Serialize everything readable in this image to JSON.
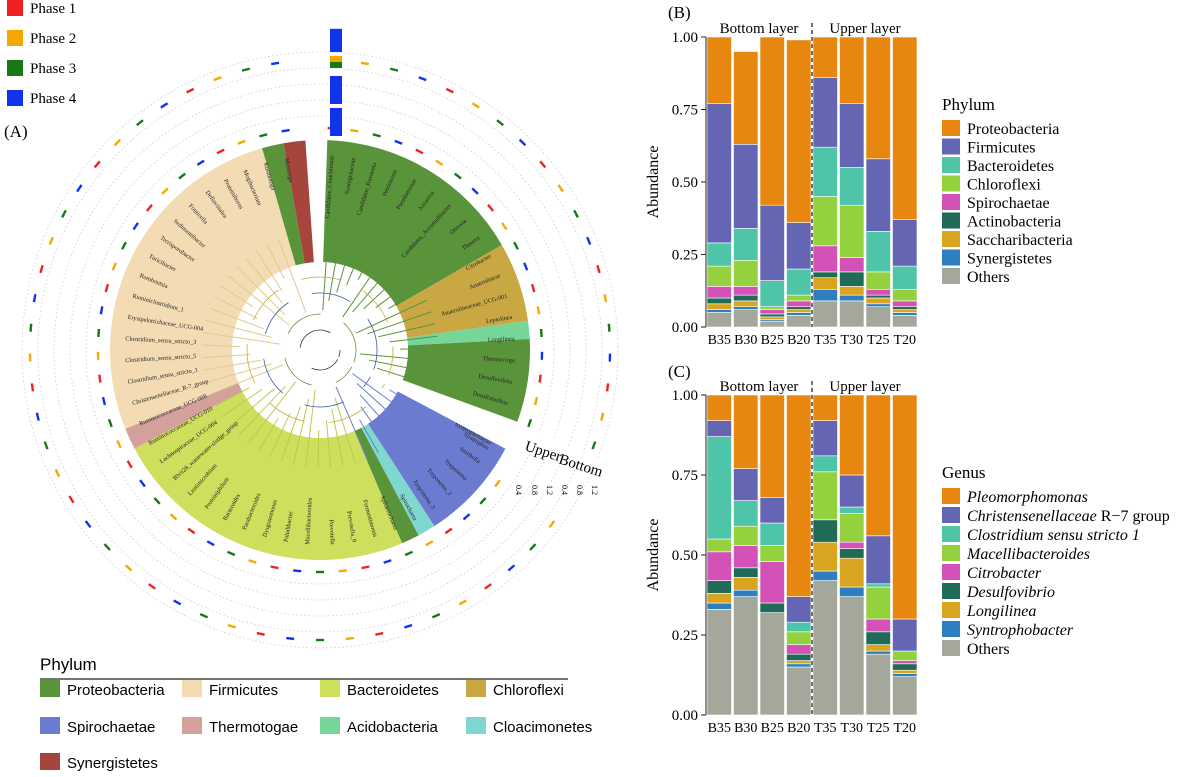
{
  "phase_legend": {
    "items": [
      {
        "label": "Phase 1",
        "color": "#ee2222"
      },
      {
        "label": "Phase 2",
        "color": "#f5a800"
      },
      {
        "label": "Phase 3",
        "color": "#157a15"
      },
      {
        "label": "Phase 4",
        "color": "#1133ee"
      }
    ]
  },
  "panel_a": {
    "label": "(A)",
    "ring_labels": {
      "upper": "Upper",
      "bottom": "Bottom"
    },
    "ring_ticks": [
      "0.4",
      "0.8",
      "1.2",
      "0.4",
      "0.8",
      "1.2"
    ],
    "clade_labels": [
      "Candidatus_Cloacimonas",
      "Synergistaceae",
      "Candidatus_Kuenenia",
      "Petrimonas",
      "Pseudomonas",
      "Azoarcus",
      "Candidatus_Accumulibacter",
      "Ottowia",
      "Thauera",
      "Citrobacter",
      "Anaerolineae",
      "Anaerolineaceae_UCG-001",
      "Leptolinea",
      "Longilinea",
      "Thermovirga",
      "Desulfovibrio",
      "Desulfobulbus",
      "Syntrophus",
      "Syntrophobacter",
      "Smithella",
      "Treponema",
      "Treponema_2",
      "Treponema_3",
      "Spirochaeta",
      "Sphaerochaeta",
      "Fermentimonas",
      "Prevotella_9",
      "Prevotella",
      "Macellibacteroides",
      "Paludibacter",
      "Dysgonomonas",
      "Parabacteroides",
      "Bacteroides",
      "Proteiniphilum",
      "Lentimicrobium",
      "Blvii28_wastewater-sludge_group",
      "Lachnospiraceae_UCG-004",
      "Ruminococcaceae_UCG-010",
      "Ruminococcaceae_UCG-008",
      "Christensenellaceae_R-7_group",
      "Clostridium_sensu_stricto_1",
      "Clostridium_sensu_stricto_5",
      "Clostridium_sensu_stricto_3",
      "Erysipelotrichaceae_UCG-004",
      "Ruminiclostridium_1",
      "Romboutsia",
      "Turicibacter",
      "Terrisporobacter",
      "Sedimentibacter",
      "Fonticella",
      "Defluviitalea",
      "Proteiniborus",
      "Mogibacterium",
      "Kosmotoga",
      "Mesotoga"
    ],
    "legend_title": "Phylum",
    "legend": [
      {
        "name": "Proteobacteria",
        "color": "#5a943a"
      },
      {
        "name": "Firmicutes",
        "color": "#f3dcb4"
      },
      {
        "name": "Bacteroidetes",
        "color": "#cddf5c"
      },
      {
        "name": "Chloroflexi",
        "color": "#c9a843"
      },
      {
        "name": "Spirochaetae",
        "color": "#6b7cd0"
      },
      {
        "name": "Thermotogae",
        "color": "#d4a09c"
      },
      {
        "name": "Acidobacteria",
        "color": "#76d69a"
      },
      {
        "name": "Cloacimonetes",
        "color": "#7fd8d0"
      },
      {
        "name": "Synergistetes",
        "color": "#a5453c"
      }
    ]
  },
  "chart_data": [
    {
      "panel": "(B)",
      "type": "bar",
      "stacked": true,
      "ylabel": "Abundance",
      "ylim": [
        0,
        1
      ],
      "yticks": [
        "0.00",
        "0.25",
        "0.50",
        "0.75",
        "1.00"
      ],
      "categories": [
        "B35",
        "B30",
        "B25",
        "B20",
        "T35",
        "T30",
        "T25",
        "T20"
      ],
      "group_labels": [
        "Bottom layer",
        "Upper layer"
      ],
      "legend_title": "Phylum",
      "series": [
        {
          "name": "Others",
          "color": "#a4a89a",
          "values": [
            0.05,
            0.06,
            0.02,
            0.04,
            0.09,
            0.09,
            0.07,
            0.04
          ]
        },
        {
          "name": "Synergistetes",
          "color": "#2e7fbf",
          "values": [
            0.01,
            0.01,
            0.005,
            0.01,
            0.04,
            0.02,
            0.01,
            0.01
          ]
        },
        {
          "name": "Saccharibacteria",
          "color": "#d9a521",
          "values": [
            0.02,
            0.02,
            0.01,
            0.01,
            0.04,
            0.03,
            0.02,
            0.01
          ]
        },
        {
          "name": "Actinobacteria",
          "color": "#1f6b58",
          "values": [
            0.02,
            0.02,
            0.01,
            0.01,
            0.02,
            0.05,
            0.01,
            0.01
          ]
        },
        {
          "name": "Spirochaetae",
          "color": "#d452b8",
          "values": [
            0.04,
            0.03,
            0.015,
            0.02,
            0.09,
            0.05,
            0.02,
            0.02
          ]
        },
        {
          "name": "Chloroflexi",
          "color": "#94d13e",
          "values": [
            0.07,
            0.09,
            0.01,
            0.02,
            0.17,
            0.18,
            0.06,
            0.04
          ]
        },
        {
          "name": "Bacteroidetes",
          "color": "#4ec5a8",
          "values": [
            0.08,
            0.11,
            0.09,
            0.09,
            0.17,
            0.13,
            0.14,
            0.08
          ]
        },
        {
          "name": "Firmicutes",
          "color": "#6466b3",
          "values": [
            0.48,
            0.29,
            0.26,
            0.16,
            0.24,
            0.22,
            0.25,
            0.16
          ]
        },
        {
          "name": "Proteobacteria",
          "color": "#e8870f",
          "values": [
            0.23,
            0.32,
            0.58,
            0.63,
            0.14,
            0.23,
            0.42,
            0.63
          ]
        }
      ]
    },
    {
      "panel": "(C)",
      "type": "bar",
      "stacked": true,
      "ylabel": "Abundance",
      "ylim": [
        0,
        1
      ],
      "yticks": [
        "0.00",
        "0.25",
        "0.50",
        "0.75",
        "1.00"
      ],
      "categories": [
        "B35",
        "B30",
        "B25",
        "B20",
        "T35",
        "T30",
        "T25",
        "T20"
      ],
      "group_labels": [
        "Bottom layer",
        "Upper layer"
      ],
      "legend_title": "Genus",
      "series": [
        {
          "name": "Others",
          "color": "#a4a89a",
          "values": [
            0.33,
            0.37,
            0.32,
            0.15,
            0.42,
            0.37,
            0.19,
            0.12
          ]
        },
        {
          "name": "Syntrophobacter",
          "color": "#2e7fbf",
          "values": [
            0.02,
            0.02,
            0.0,
            0.01,
            0.03,
            0.03,
            0.01,
            0.01
          ]
        },
        {
          "name": "Longilinea",
          "color": "#d9a521",
          "values": [
            0.03,
            0.04,
            0.0,
            0.01,
            0.09,
            0.09,
            0.02,
            0.01
          ]
        },
        {
          "name": "Desulfovibrio",
          "color": "#1f6b58",
          "values": [
            0.04,
            0.03,
            0.03,
            0.02,
            0.07,
            0.03,
            0.04,
            0.02
          ]
        },
        {
          "name": "Citrobacter",
          "color": "#d452b8",
          "values": [
            0.09,
            0.07,
            0.13,
            0.03,
            0.0,
            0.02,
            0.04,
            0.01
          ]
        },
        {
          "name": "Macellibacteroides",
          "color": "#94d13e",
          "values": [
            0.04,
            0.06,
            0.05,
            0.04,
            0.15,
            0.09,
            0.1,
            0.03
          ]
        },
        {
          "name": "Clostridium sensu stricto 1",
          "color": "#4ec5a8",
          "values": [
            0.32,
            0.08,
            0.07,
            0.03,
            0.05,
            0.02,
            0.01,
            0.0
          ]
        },
        {
          "name": "Christensenellaceae R−7 group",
          "color": "#6466b3",
          "values": [
            0.05,
            0.1,
            0.08,
            0.08,
            0.11,
            0.1,
            0.15,
            0.1
          ]
        },
        {
          "name": "Pleomorphomonas",
          "color": "#e8870f",
          "values": [
            0.08,
            0.23,
            0.32,
            0.63,
            0.08,
            0.25,
            0.44,
            0.7
          ]
        }
      ]
    }
  ]
}
